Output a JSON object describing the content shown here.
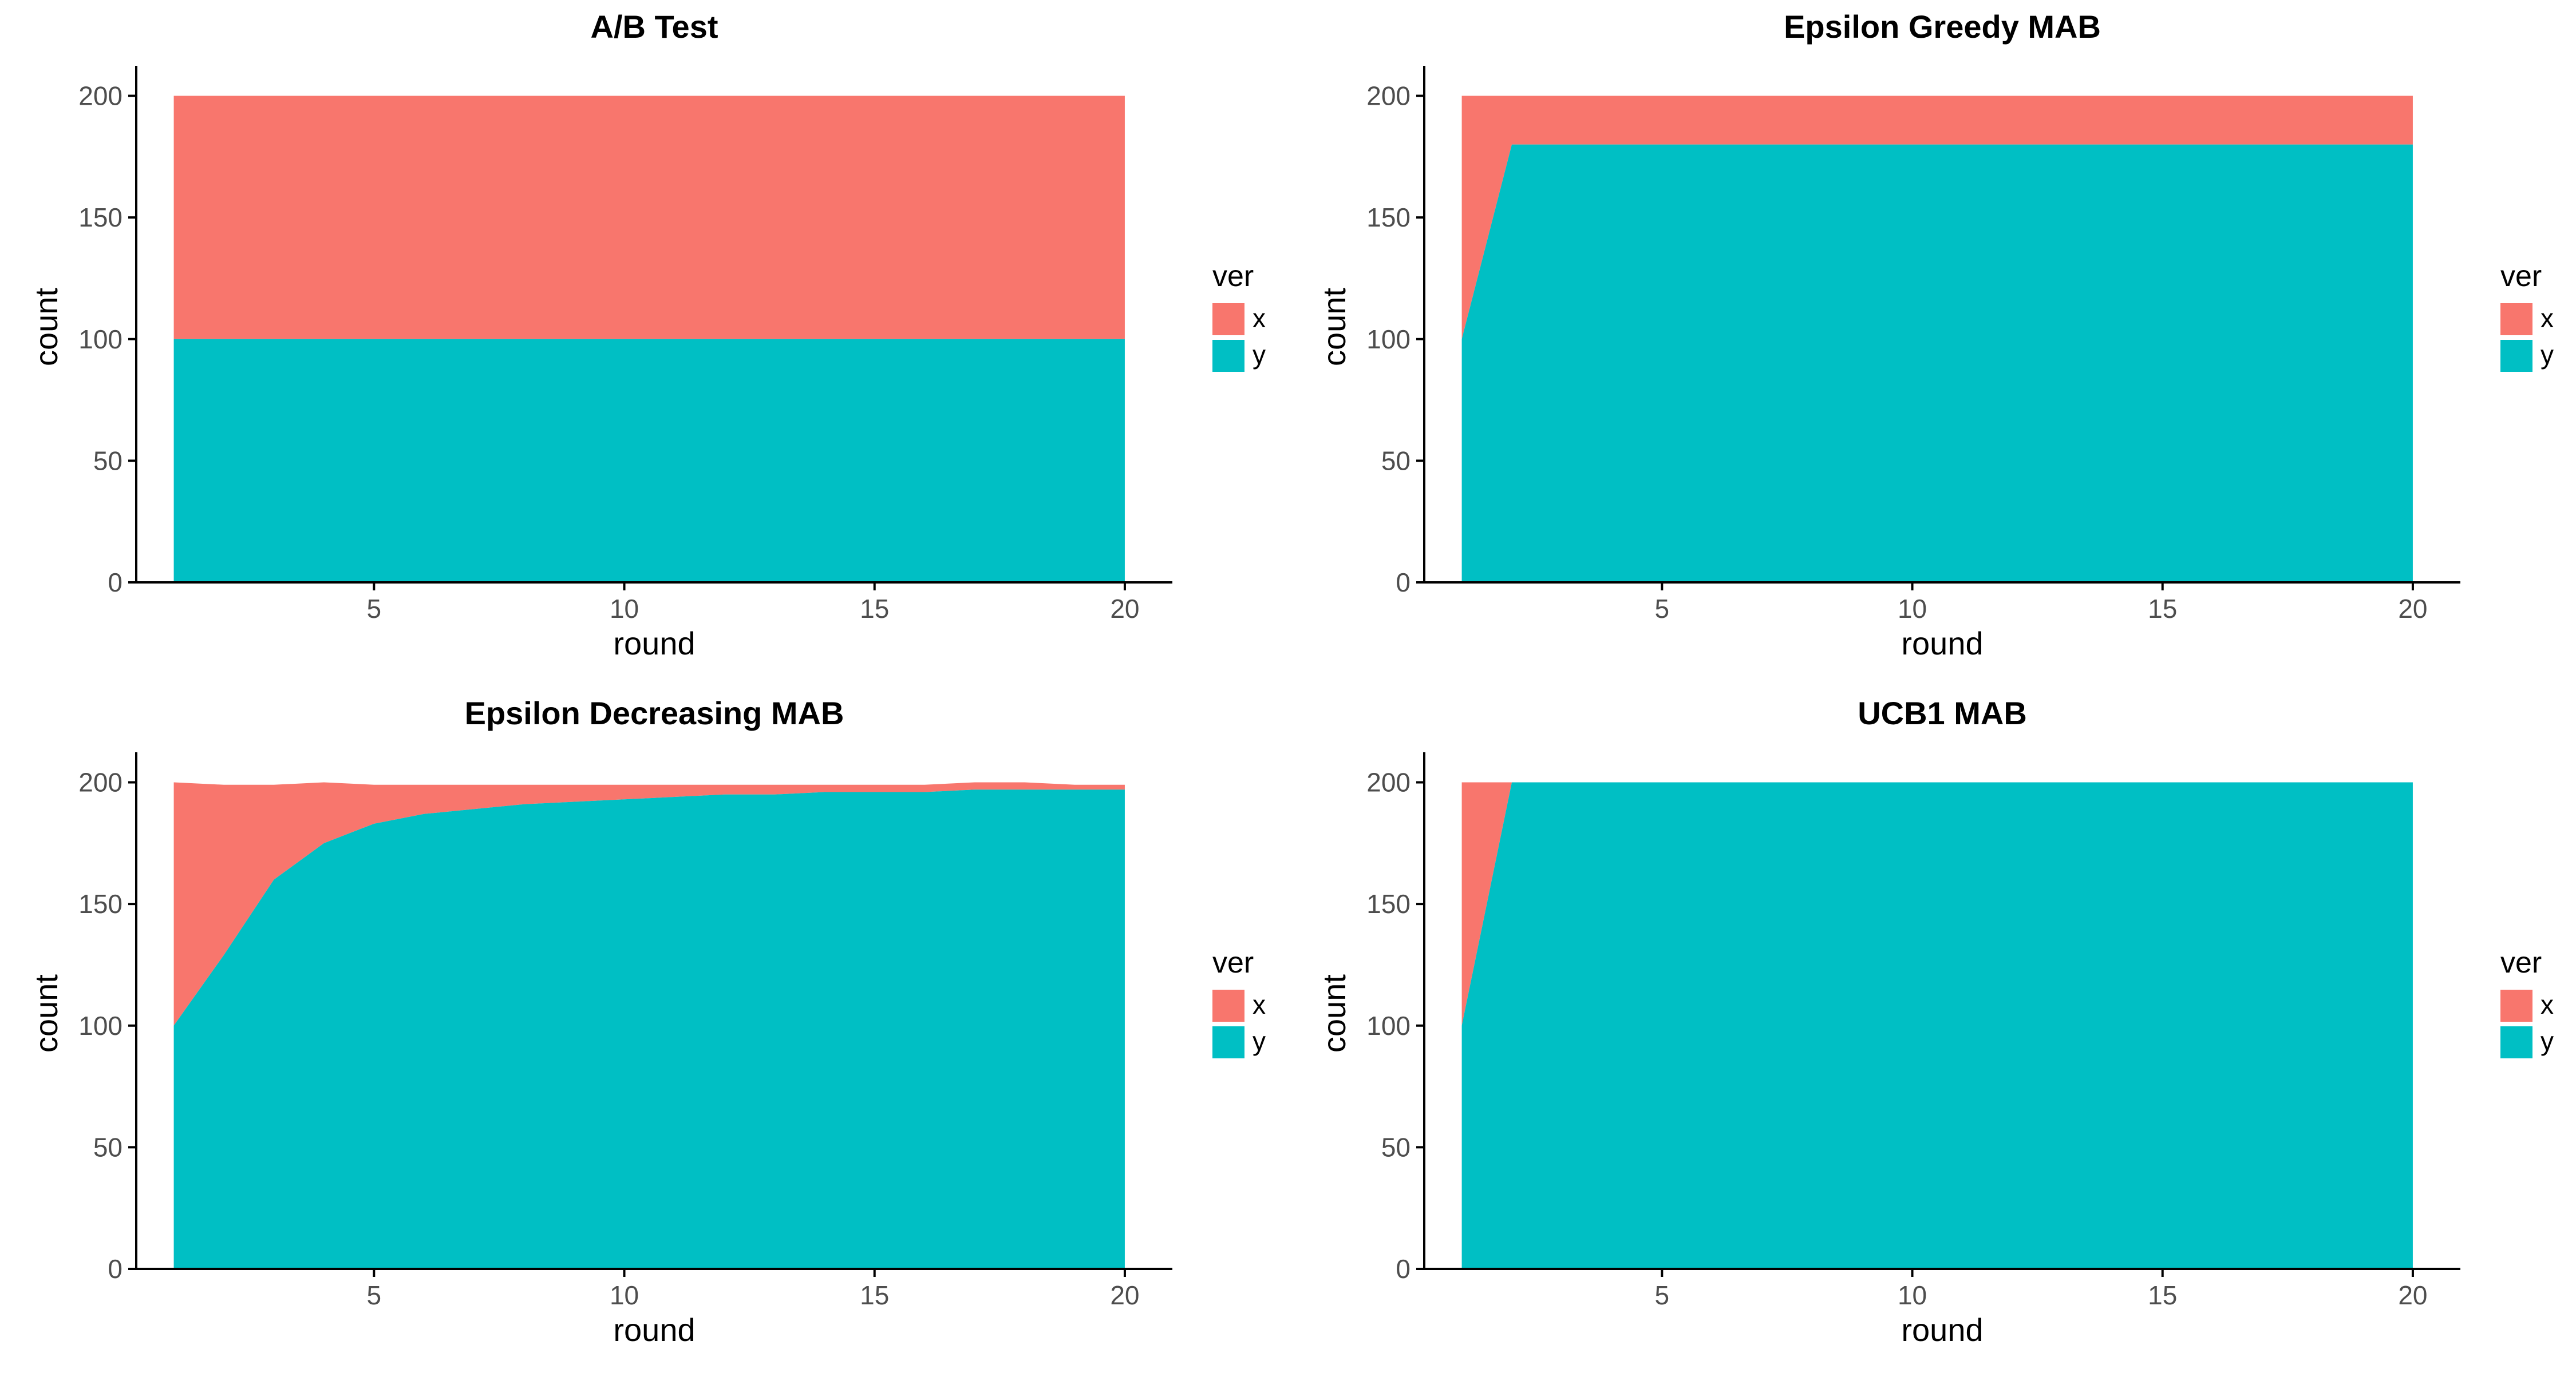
{
  "chart_data": [
    {
      "type": "area",
      "stacked": true,
      "title": "A/B Test",
      "xlabel": "round",
      "ylabel": "count",
      "x": [
        1,
        20
      ],
      "series": [
        {
          "name": "x",
          "values": [
            100,
            100
          ]
        },
        {
          "name": "y",
          "values": [
            100,
            100
          ]
        }
      ],
      "xticks": [
        5,
        10,
        15,
        20
      ],
      "yticks": [
        0,
        50,
        100,
        150,
        200
      ],
      "xlim": [
        0.25,
        20.95
      ],
      "ylim": [
        0,
        210
      ],
      "grid": false,
      "legend": {
        "title": "ver",
        "entries": [
          "x",
          "y"
        ],
        "placement": "right"
      }
    },
    {
      "type": "area",
      "stacked": true,
      "title": "Epsilon Greedy MAB",
      "xlabel": "round",
      "ylabel": "count",
      "x": [
        1,
        2,
        20
      ],
      "series": [
        {
          "name": "x",
          "values": [
            100,
            20,
            20
          ]
        },
        {
          "name": "y",
          "values": [
            100,
            180,
            180
          ]
        }
      ],
      "xticks": [
        5,
        10,
        15,
        20
      ],
      "yticks": [
        0,
        50,
        100,
        150,
        200
      ],
      "xlim": [
        0.25,
        20.95
      ],
      "ylim": [
        0,
        210
      ],
      "grid": false,
      "legend": {
        "title": "ver",
        "entries": [
          "x",
          "y"
        ],
        "placement": "right"
      }
    },
    {
      "type": "area",
      "stacked": true,
      "title": "Epsilon Decreasing MAB",
      "xlabel": "round",
      "ylabel": "count",
      "x": [
        1,
        2,
        3,
        4,
        5,
        6,
        7,
        8,
        9,
        10,
        11,
        12,
        13,
        14,
        15,
        16,
        17,
        18,
        19,
        20
      ],
      "series": [
        {
          "name": "x",
          "values": [
            100,
            70,
            39,
            25,
            16,
            12,
            10,
            8,
            7,
            6,
            5,
            4,
            4,
            3,
            3,
            3,
            3,
            3,
            2,
            2
          ]
        },
        {
          "name": "y",
          "values": [
            100,
            129,
            160,
            175,
            183,
            187,
            189,
            191,
            192,
            193,
            194,
            195,
            195,
            196,
            196,
            196,
            197,
            197,
            197,
            197
          ]
        }
      ],
      "xticks": [
        5,
        10,
        15,
        20
      ],
      "yticks": [
        0,
        50,
        100,
        150,
        200
      ],
      "xlim": [
        0.25,
        20.95
      ],
      "ylim": [
        0,
        210
      ],
      "grid": false,
      "legend": {
        "title": "ver",
        "entries": [
          "x",
          "y"
        ],
        "placement": "right"
      }
    },
    {
      "type": "area",
      "stacked": true,
      "title": "UCB1 MAB",
      "xlabel": "round",
      "ylabel": "count",
      "x": [
        1,
        2,
        20
      ],
      "series": [
        {
          "name": "x",
          "values": [
            100,
            0,
            0
          ]
        },
        {
          "name": "y",
          "values": [
            100,
            200,
            200
          ]
        }
      ],
      "xticks": [
        5,
        10,
        15,
        20
      ],
      "yticks": [
        0,
        50,
        100,
        150,
        200
      ],
      "xlim": [
        0.25,
        20.95
      ],
      "ylim": [
        0,
        210
      ],
      "grid": false,
      "legend": {
        "title": "ver",
        "entries": [
          "x",
          "y"
        ],
        "placement": "right"
      }
    }
  ],
  "colors": {
    "x": "#F8766D",
    "y": "#00BFC4",
    "axis": "#000000",
    "background": "#ffffff"
  }
}
